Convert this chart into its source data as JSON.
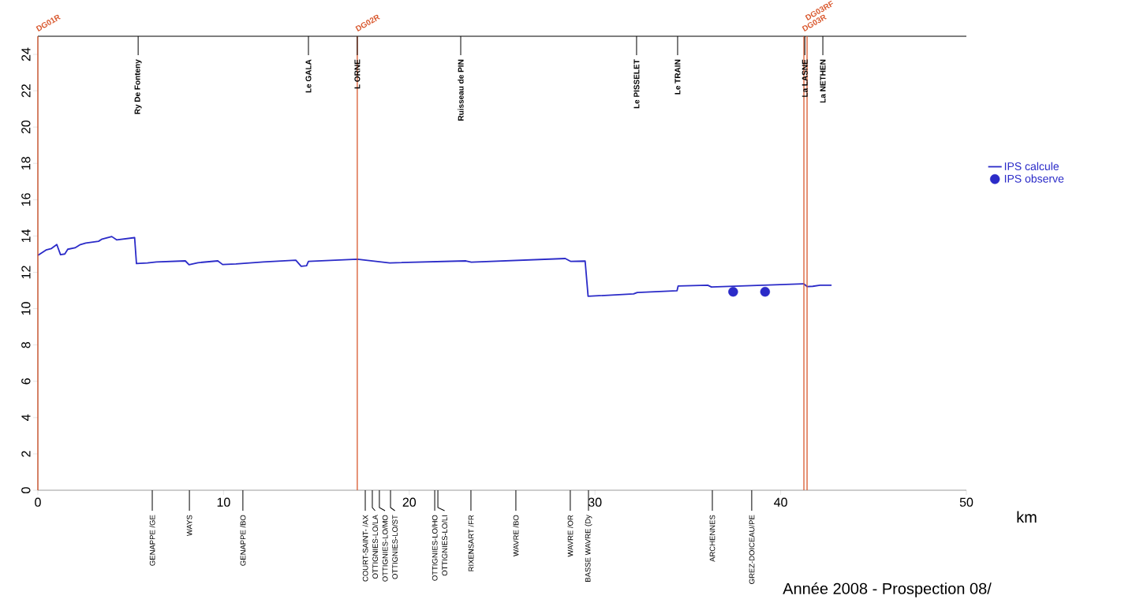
{
  "chart_data": {
    "type": "line",
    "xlabel": "km",
    "xlim": [
      0,
      50
    ],
    "xticks": [
      0,
      10,
      20,
      30,
      40,
      50
    ],
    "ylim": [
      0,
      25
    ],
    "yticks": [
      0,
      2,
      4,
      6,
      8,
      10,
      12,
      14,
      16,
      18,
      20,
      22,
      24
    ],
    "grid": false,
    "legend": "right",
    "series": [
      {
        "name": "IPS calcule",
        "color": "#2b2bc8",
        "marker": "none",
        "line_style": "solid",
        "x": [
          0,
          0.44,
          0.73,
          1.02,
          1.22,
          1.45,
          1.61,
          2.0,
          2.29,
          2.58,
          3.27,
          3.46,
          3.98,
          4.24,
          5.21,
          5.31,
          5.9,
          6.38,
          7.94,
          8.14,
          8.62,
          9.69,
          9.95,
          10.67,
          12.13,
          13.89,
          14.18,
          14.47,
          14.57,
          17.2,
          18.95,
          23.05,
          23.34,
          28.4,
          28.7,
          29.47,
          29.63,
          32.08,
          32.28,
          34.42,
          34.48,
          36.07,
          36.27,
          41.24,
          41.43,
          41.73,
          42.12,
          42.74
        ],
        "values": [
          12.93,
          13.23,
          13.31,
          13.53,
          12.97,
          13.01,
          13.27,
          13.35,
          13.53,
          13.61,
          13.71,
          13.83,
          13.97,
          13.79,
          13.91,
          12.48,
          12.52,
          12.57,
          12.63,
          12.42,
          12.53,
          12.63,
          12.43,
          12.46,
          12.57,
          12.67,
          12.33,
          12.36,
          12.6,
          12.72,
          12.52,
          12.63,
          12.56,
          12.76,
          12.6,
          12.62,
          10.68,
          10.81,
          10.89,
          10.99,
          11.25,
          11.29,
          11.19,
          11.37,
          11.21,
          11.23,
          11.29,
          11.29
        ]
      },
      {
        "name": "IPS observe",
        "type": "scatter",
        "color": "#2b2bc8",
        "marker": "circle",
        "x": [
          37.44,
          39.16
        ],
        "values": [
          10.93,
          10.93
        ]
      }
    ],
    "ref_lines": [
      {
        "axis": "x",
        "value": 0,
        "label": "DG01R",
        "color": "#d9582e"
      },
      {
        "axis": "x",
        "value": 17.2,
        "label": "DG02R",
        "color": "#d9582e"
      },
      {
        "axis": "x",
        "value": 41.25,
        "label": "DG03R",
        "color": "#d9582e"
      },
      {
        "axis": "x",
        "value": 41.42,
        "label": "DG03RF",
        "color": "#d9582e"
      },
      {
        "axis": "x",
        "value": 5.4,
        "label": "Ry De Fonteny",
        "color": "#000000",
        "line_style": "solid"
      },
      {
        "axis": "x",
        "value": 14.57,
        "label": "Le GALA",
        "color": "#000000",
        "line_style": "solid"
      },
      {
        "axis": "x",
        "value": 17.2,
        "label": "L ORNE",
        "color": "#000000",
        "line_style": "solid"
      },
      {
        "axis": "x",
        "value": 22.77,
        "label": "Ruisseau de PIN",
        "color": "#000000",
        "line_style": "solid"
      },
      {
        "axis": "x",
        "value": 32.24,
        "label": "Le PISSELET",
        "color": "#000000",
        "line_style": "solid"
      },
      {
        "axis": "x",
        "value": 34.45,
        "label": "Le TRAIN",
        "color": "#000000",
        "line_style": "solid"
      },
      {
        "axis": "x",
        "value": 41.3,
        "label": "La LASNE",
        "color": "#000000",
        "line_style": "solid"
      },
      {
        "axis": "x",
        "value": 42.27,
        "label": "La NETHEN",
        "color": "#000000",
        "line_style": "solid"
      },
      {
        "axis": "x",
        "value": 6.16,
        "label": "GENAPPE /GE"
      },
      {
        "axis": "x",
        "value": 8.16,
        "label": "WAYS"
      },
      {
        "axis": "x",
        "value": 11.04,
        "label": "GENAPPE /BO"
      },
      {
        "axis": "x",
        "value": 17.63,
        "label": "COURT-SAINT- /AX"
      },
      {
        "axis": "x",
        "value": 18.01,
        "label": "OTTIGNIES-LO/LA"
      },
      {
        "axis": "x",
        "value": 18.39,
        "label": "OTTIGNIES-LO/MO"
      },
      {
        "axis": "x",
        "value": 18.99,
        "label": "OTTIGNIES-LO/ST"
      },
      {
        "axis": "x",
        "value": 21.37,
        "label": "OTTIGNIES-LO/HO"
      },
      {
        "axis": "x",
        "value": 21.54,
        "label": "OTTIGNIES-LO/LI"
      },
      {
        "axis": "x",
        "value": 23.32,
        "label": "RIXENSART /FR"
      },
      {
        "axis": "x",
        "value": 25.74,
        "label": "WAVRE /BO"
      },
      {
        "axis": "x",
        "value": 28.67,
        "label": "WAVRE /OR"
      },
      {
        "axis": "x",
        "value": 29.65,
        "label": "BASSE WAVRE (Dy"
      },
      {
        "axis": "x",
        "value": 36.32,
        "label": "ARCHENNES"
      },
      {
        "axis": "x",
        "value": 38.44,
        "label": "GREZ-DOICEAU/PE"
      }
    ],
    "annotations": [
      "Année 2008 - Prospection 08/"
    ]
  }
}
